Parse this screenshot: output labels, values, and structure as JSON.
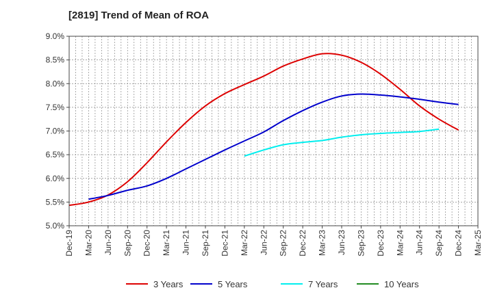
{
  "chart_data": {
    "type": "line",
    "title": "[2819]  Trend of Mean of ROA",
    "xlabel": "",
    "ylabel": "",
    "x_ticks": [
      "Dec-19",
      "Mar-20",
      "Jun-20",
      "Sep-20",
      "Dec-20",
      "Mar-21",
      "Jun-21",
      "Sep-21",
      "Dec-21",
      "Mar-22",
      "Jun-22",
      "Sep-22",
      "Dec-22",
      "Mar-23",
      "Jun-23",
      "Sep-23",
      "Dec-23",
      "Mar-24",
      "Jun-24",
      "Sep-24",
      "Dec-24",
      "Mar-25"
    ],
    "y_ticks": [
      "5.0%",
      "5.5%",
      "6.0%",
      "6.5%",
      "7.0%",
      "7.5%",
      "8.0%",
      "8.5%",
      "9.0%"
    ],
    "ylim": [
      5.0,
      9.0
    ],
    "grid": true,
    "legend_position": "bottom",
    "series": [
      {
        "name": "3 Years",
        "color": "#dd0000",
        "start_index": 0,
        "values": [
          5.43,
          5.5,
          5.65,
          5.93,
          6.33,
          6.77,
          7.18,
          7.53,
          7.79,
          7.98,
          8.16,
          8.37,
          8.52,
          8.63,
          8.6,
          8.45,
          8.2,
          7.88,
          7.53,
          7.25,
          7.02
        ]
      },
      {
        "name": "5 Years",
        "color": "#0000cc",
        "start_index": 1,
        "values": [
          5.56,
          5.64,
          5.75,
          5.84,
          6.0,
          6.2,
          6.4,
          6.6,
          6.79,
          6.98,
          7.22,
          7.43,
          7.61,
          7.74,
          7.78,
          7.76,
          7.72,
          7.67,
          7.61,
          7.56
        ]
      },
      {
        "name": "7 Years",
        "color": "#00eeee",
        "start_index": 9,
        "values": [
          6.47,
          6.6,
          6.71,
          6.76,
          6.8,
          6.87,
          6.92,
          6.95,
          6.97,
          6.99,
          7.04
        ]
      },
      {
        "name": "10 Years",
        "color": "#228b22",
        "start_index": 0,
        "values": []
      }
    ]
  }
}
